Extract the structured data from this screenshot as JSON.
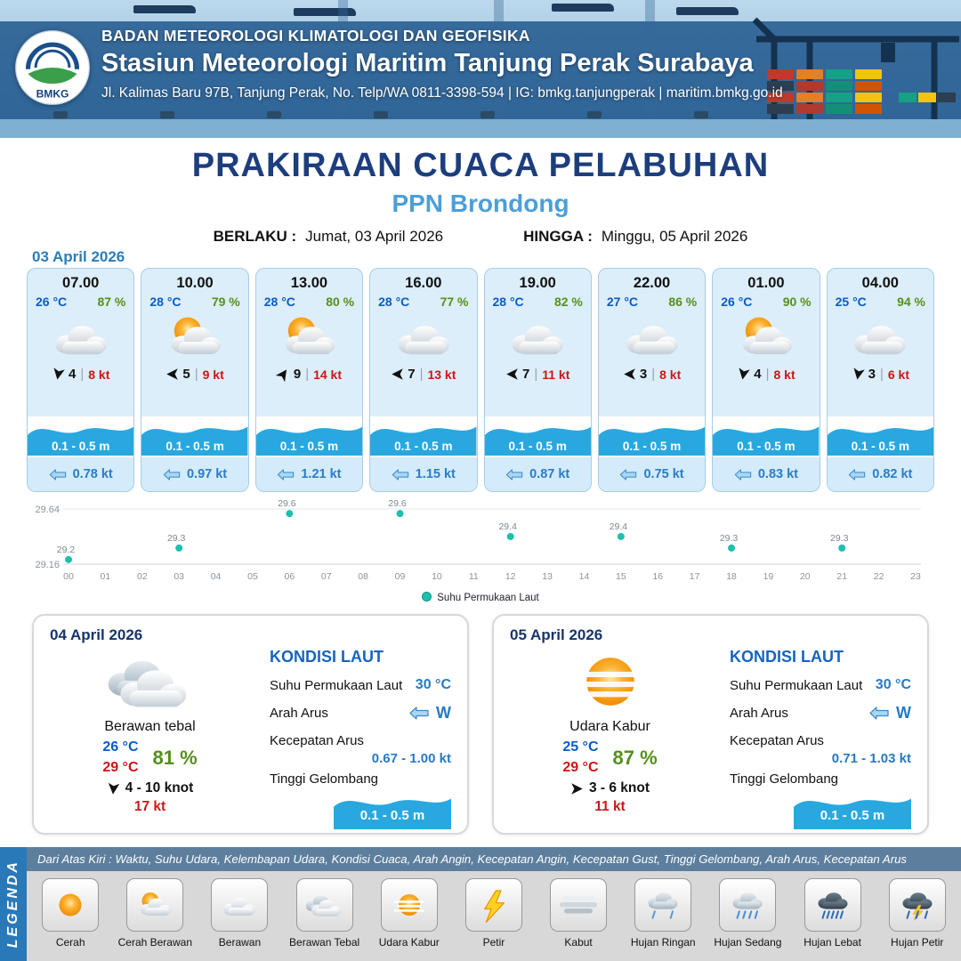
{
  "header": {
    "logo_text": "BMKG",
    "org": "BADAN METEOROLOGI KLIMATOLOGI DAN GEOFISIKA",
    "station": "Stasiun Meteorologi Maritim Tanjung Perak Surabaya",
    "contact": "Jl. Kalimas Baru 97B, Tanjung Perak, No. Telp/WA 0811-3398-594 | IG: bmkg.tanjungperak | maritim.bmkg.go.id"
  },
  "title": {
    "main": "PRAKIRAAN CUACA PELABUHAN",
    "port": "PPN Brondong",
    "berlaku_label": "BERLAKU :",
    "berlaku_value": "Jumat, 03 April 2026",
    "hingga_label": "HINGGA :",
    "hingga_value": "Minggu, 05 April 2026"
  },
  "forecast_date": "03 April 2026",
  "hourly": [
    {
      "time": "07.00",
      "temp": "26 °C",
      "humidity": "87 %",
      "icon": "berawan",
      "wind_rot": 100,
      "wind_val": "4",
      "gust": "8 kt",
      "wave": "0.1 - 0.5 m",
      "current": "0.78 kt"
    },
    {
      "time": "10.00",
      "temp": "28 °C",
      "humidity": "79 %",
      "icon": "cerah-berawan",
      "wind_rot": 180,
      "wind_val": "5",
      "gust": "9 kt",
      "wave": "0.1 - 0.5 m",
      "current": "0.97 kt"
    },
    {
      "time": "13.00",
      "temp": "28 °C",
      "humidity": "80 %",
      "icon": "cerah-berawan",
      "wind_rot": -55,
      "wind_val": "9",
      "gust": "14 kt",
      "wave": "0.1 - 0.5 m",
      "current": "1.21 kt"
    },
    {
      "time": "16.00",
      "temp": "28 °C",
      "humidity": "77 %",
      "icon": "berawan",
      "wind_rot": 180,
      "wind_val": "7",
      "gust": "13 kt",
      "wave": "0.1 - 0.5 m",
      "current": "1.15 kt"
    },
    {
      "time": "19.00",
      "temp": "28 °C",
      "humidity": "82 %",
      "icon": "berawan",
      "wind_rot": 180,
      "wind_val": "7",
      "gust": "11 kt",
      "wave": "0.1 - 0.5 m",
      "current": "0.87 kt"
    },
    {
      "time": "22.00",
      "temp": "27 °C",
      "humidity": "86 %",
      "icon": "berawan",
      "wind_rot": 180,
      "wind_val": "3",
      "gust": "8 kt",
      "wave": "0.1 - 0.5 m",
      "current": "0.75 kt"
    },
    {
      "time": "01.00",
      "temp": "26 °C",
      "humidity": "90 %",
      "icon": "cerah-berawan",
      "wind_rot": 100,
      "wind_val": "4",
      "gust": "8 kt",
      "wave": "0.1 - 0.5 m",
      "current": "0.83 kt"
    },
    {
      "time": "04.00",
      "temp": "25 °C",
      "humidity": "94 %",
      "icon": "berawan",
      "wind_rot": 100,
      "wind_val": "3",
      "gust": "6 kt",
      "wave": "0.1 - 0.5 m",
      "current": "0.82 kt"
    }
  ],
  "chart_data": {
    "type": "scatter",
    "legend": "Suhu Permukaan Laut",
    "x": [
      0,
      3,
      6,
      9,
      12,
      15,
      18,
      21
    ],
    "values": [
      29.2,
      29.3,
      29.6,
      29.6,
      29.4,
      29.4,
      29.3,
      29.3
    ],
    "x_ticks": [
      "00",
      "01",
      "02",
      "03",
      "04",
      "05",
      "06",
      "07",
      "08",
      "09",
      "10",
      "11",
      "12",
      "13",
      "14",
      "15",
      "16",
      "17",
      "18",
      "19",
      "20",
      "21",
      "22",
      "23"
    ],
    "ylim": [
      29.16,
      29.64
    ],
    "y_ticks": [
      "29.64",
      "29.16"
    ],
    "point_color": "#1fbfae",
    "grid": true,
    "legend_position": "bottom"
  },
  "daily": [
    {
      "date": "04 April 2026",
      "condition": "Berawan tebal",
      "icon": "berawan-tebal",
      "temp_min": "26 °C",
      "temp_max": "29 °C",
      "humidity": "81 %",
      "wind_rot": 95,
      "wind_range": "4  - 10 knot",
      "gust": "17 kt",
      "sea": {
        "title": "KONDISI LAUT",
        "sst_label": "Suhu Permukaan Laut",
        "sst": "30 °C",
        "current_dir_label": "Arah Arus",
        "current_dir": "W",
        "current_speed_label": "Kecepatan Arus",
        "current_speed": "0.67 - 1.00 kt",
        "wave_label": "Tinggi Gelombang",
        "wave": "0.1 - 0.5 m"
      }
    },
    {
      "date": "05 April 2026",
      "condition": "Udara Kabur",
      "icon": "udara-kabur",
      "temp_min": "25 °C",
      "temp_max": "29 °C",
      "humidity": "87 %",
      "wind_rot": 0,
      "wind_range": "3  - 6 knot",
      "gust": "11 kt",
      "sea": {
        "title": "KONDISI LAUT",
        "sst_label": "Suhu Permukaan Laut",
        "sst": "30 °C",
        "current_dir_label": "Arah Arus",
        "current_dir": "W",
        "current_speed_label": "Kecepatan Arus",
        "current_speed": "0.71 - 1.03 kt",
        "wave_label": "Tinggi Gelombang",
        "wave": "0.1 - 0.5 m"
      }
    }
  ],
  "legend": {
    "sidebar": "LEGENDA",
    "description": "Dari Atas Kiri : Waktu, Suhu Udara, Kelembapan Udara, Kondisi Cuaca, Arah Angin, Kecepatan Angin, Kecepatan Gust, Tinggi Gelombang, Arah Arus, Kecepatan Arus",
    "items": [
      {
        "label": "Cerah",
        "icon": "cerah"
      },
      {
        "label": "Cerah Berawan",
        "icon": "cerah-berawan"
      },
      {
        "label": "Berawan",
        "icon": "berawan"
      },
      {
        "label": "Berawan Tebal",
        "icon": "berawan-tebal"
      },
      {
        "label": "Udara Kabur",
        "icon": "udara-kabur"
      },
      {
        "label": "Petir",
        "icon": "petir"
      },
      {
        "label": "Kabut",
        "icon": "kabut"
      },
      {
        "label": "Hujan Ringan",
        "icon": "hujan-ringan"
      },
      {
        "label": "Hujan Sedang",
        "icon": "hujan-sedang"
      },
      {
        "label": "Hujan Lebat",
        "icon": "hujan-lebat"
      },
      {
        "label": "Hujan Petir",
        "icon": "hujan-petir"
      }
    ]
  }
}
